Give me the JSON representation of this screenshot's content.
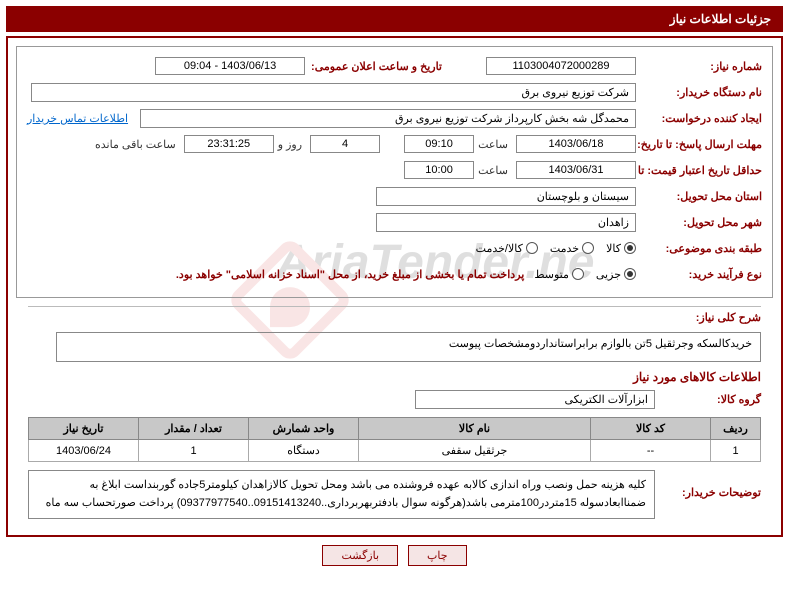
{
  "header": {
    "title": "جزئیات اطلاعات نیاز"
  },
  "fields": {
    "need_number_label": "شماره نیاز:",
    "need_number": "1103004072000289",
    "announce_date_label": "تاریخ و ساعت اعلان عمومی:",
    "announce_date": "1403/06/13 - 09:04",
    "buyer_org_label": "نام دستگاه خریدار:",
    "buyer_org": "شرکت توزیع نیروی برق",
    "requester_label": "ایجاد کننده درخواست:",
    "requester": "محمدگل شه بخش کارپرداز شرکت توزیع نیروی برق",
    "contact_link": "اطلاعات تماس خریدار",
    "reply_deadline_label": "مهلت ارسال پاسخ: تا تاریخ:",
    "reply_date": "1403/06/18",
    "reply_time_label": "ساعت",
    "reply_time": "09:10",
    "days_remain": "4",
    "days_word": "روز و",
    "time_remain": "23:31:25",
    "remain_suffix": "ساعت باقی مانده",
    "price_validity_label": "حداقل تاریخ اعتبار قیمت: تا تاریخ:",
    "price_date": "1403/06/31",
    "price_time": "10:00",
    "province_label": "استان محل تحویل:",
    "province": "سیستان و بلوچستان",
    "city_label": "شهر محل تحویل:",
    "city": "زاهدان",
    "category_label": "طبقه بندی موضوعی:",
    "cat_goods": "کالا",
    "cat_service": "خدمت",
    "cat_goods_service": "کالا/خدمت",
    "process_label": "نوع فرآیند خرید:",
    "proc_partial": "جزیی",
    "proc_medium": "متوسط",
    "payment_note": "پرداخت تمام یا بخشی از مبلغ خرید، از محل \"اسناد خزانه اسلامی\" خواهد بود.",
    "general_desc_label": "شرح کلی نیاز:",
    "general_desc": "خریدکالسکه وجرثقیل 5تن بالوازم برابراستانداردومشخصات پیوست",
    "items_title": "اطلاعات کالاهای مورد نیاز",
    "goods_group_label": "گروه کالا:",
    "goods_group": "ابزارآلات الکتریکی",
    "buyer_notes_label": "توضیحات خریدار:",
    "buyer_notes": "کلیه هزینه حمل ونصب وراه اندازی کالابه عهده فروشنده می باشد ومحل تحویل کالازاهدان کیلومتر5جاده گوربنداست ابلاغ به ضمناابعادسوله 15متردر100مترمی باشد(هرگونه سوال بادفتربهربرداری..09151413240..09377977540) پرداخت صورتحساب سه ماه"
  },
  "table": {
    "headers": {
      "row": "ردیف",
      "code": "کد کالا",
      "name": "نام کالا",
      "unit": "واحد شمارش",
      "qty": "تعداد / مقدار",
      "need_date": "تاریخ نیاز"
    },
    "rows": [
      {
        "row": "1",
        "code": "--",
        "name": "جرثقیل سقفی",
        "unit": "دستگاه",
        "qty": "1",
        "need_date": "1403/06/24"
      }
    ]
  },
  "buttons": {
    "print": "چاپ",
    "back": "بازگشت"
  },
  "colors": {
    "primary": "#8b0000",
    "header_bg": "#8b0000",
    "header_text": "#ffffff",
    "border": "#888888",
    "table_header_bg": "#c8c8c8",
    "link": "#0066cc"
  }
}
